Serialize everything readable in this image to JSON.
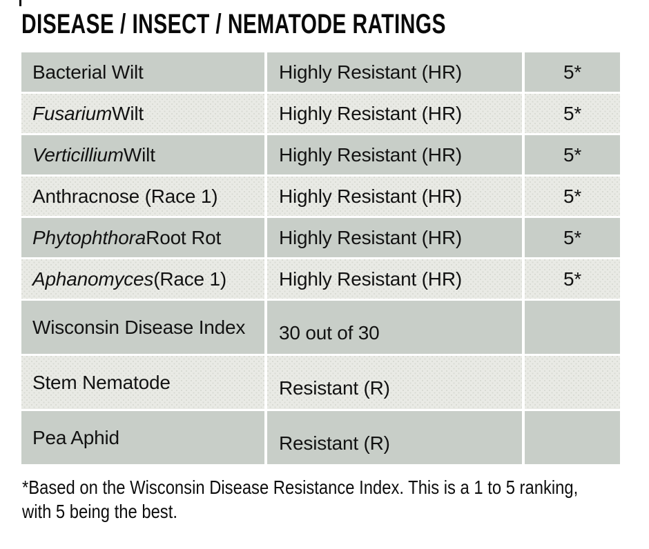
{
  "page": {
    "title": "DISEASE / INSECT / NEMATODE RATINGS"
  },
  "table": {
    "rows": [
      {
        "label_parts": [
          {
            "text": "Bacterial Wilt",
            "italic": false
          }
        ],
        "rating": "Highly Resistant (HR)",
        "score": "5*"
      },
      {
        "label_parts": [
          {
            "text": "Fusarium",
            "italic": true
          },
          {
            "text": " Wilt",
            "italic": false
          }
        ],
        "rating": "Highly Resistant (HR)",
        "score": "5*"
      },
      {
        "label_parts": [
          {
            "text": "Verticillium",
            "italic": true
          },
          {
            "text": " Wilt",
            "italic": false
          }
        ],
        "rating": "Highly Resistant (HR)",
        "score": "5*"
      },
      {
        "label_parts": [
          {
            "text": "Anthracnose (Race 1)",
            "italic": false
          }
        ],
        "rating": "Highly Resistant (HR)",
        "score": "5*"
      },
      {
        "label_parts": [
          {
            "text": "Phytophthora",
            "italic": true
          },
          {
            "text": " Root Rot",
            "italic": false
          }
        ],
        "rating": "Highly Resistant (HR)",
        "score": "5*"
      },
      {
        "label_parts": [
          {
            "text": "Aphanomyces",
            "italic": true
          },
          {
            "text": " (Race 1)",
            "italic": false
          }
        ],
        "rating": "Highly Resistant (HR)",
        "score": "5*"
      },
      {
        "label_parts": [
          {
            "text": "Wisconsin Disease Index",
            "italic": false
          }
        ],
        "rating": "30 out of 30",
        "score": ""
      },
      {
        "label_parts": [
          {
            "text": "Stem Nematode",
            "italic": false
          }
        ],
        "rating": "Resistant (R)",
        "score": ""
      },
      {
        "label_parts": [
          {
            "text": "Pea Aphid",
            "italic": false
          }
        ],
        "rating": "Resistant (R)",
        "score": ""
      }
    ]
  },
  "footnote": {
    "lines": [
      "*Based on the Wisconsin Disease Resistance Index. This is a 1 to 5 ranking,",
      "with 5 being the best."
    ]
  },
  "colors": {
    "row_dark": "#c8cec8",
    "row_light": "#e9eae5",
    "text": "#111111",
    "background": "#ffffff"
  }
}
